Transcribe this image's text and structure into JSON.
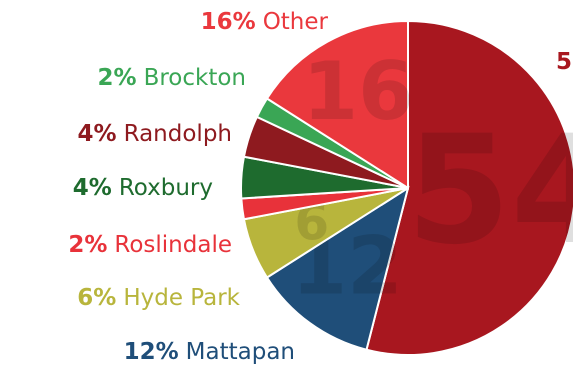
{
  "chart_data": {
    "type": "pie",
    "categories": [
      null,
      "Mattapan",
      "Hyde Park",
      "Roslindale",
      "Roxbury",
      "Randolph",
      "Brockton",
      "Other"
    ],
    "values": [
      54,
      12,
      6,
      2,
      4,
      4,
      2,
      16
    ],
    "value_labels": [
      "54%",
      "12%",
      "6%",
      "2%",
      "4%",
      "4%",
      "2%",
      "16%"
    ],
    "colors": [
      "#a8171f",
      "#1f4e79",
      "#b8b53c",
      "#e8323a",
      "#1e6b2e",
      "#8e1a1f",
      "#3aa655",
      "#ea383d"
    ]
  }
}
